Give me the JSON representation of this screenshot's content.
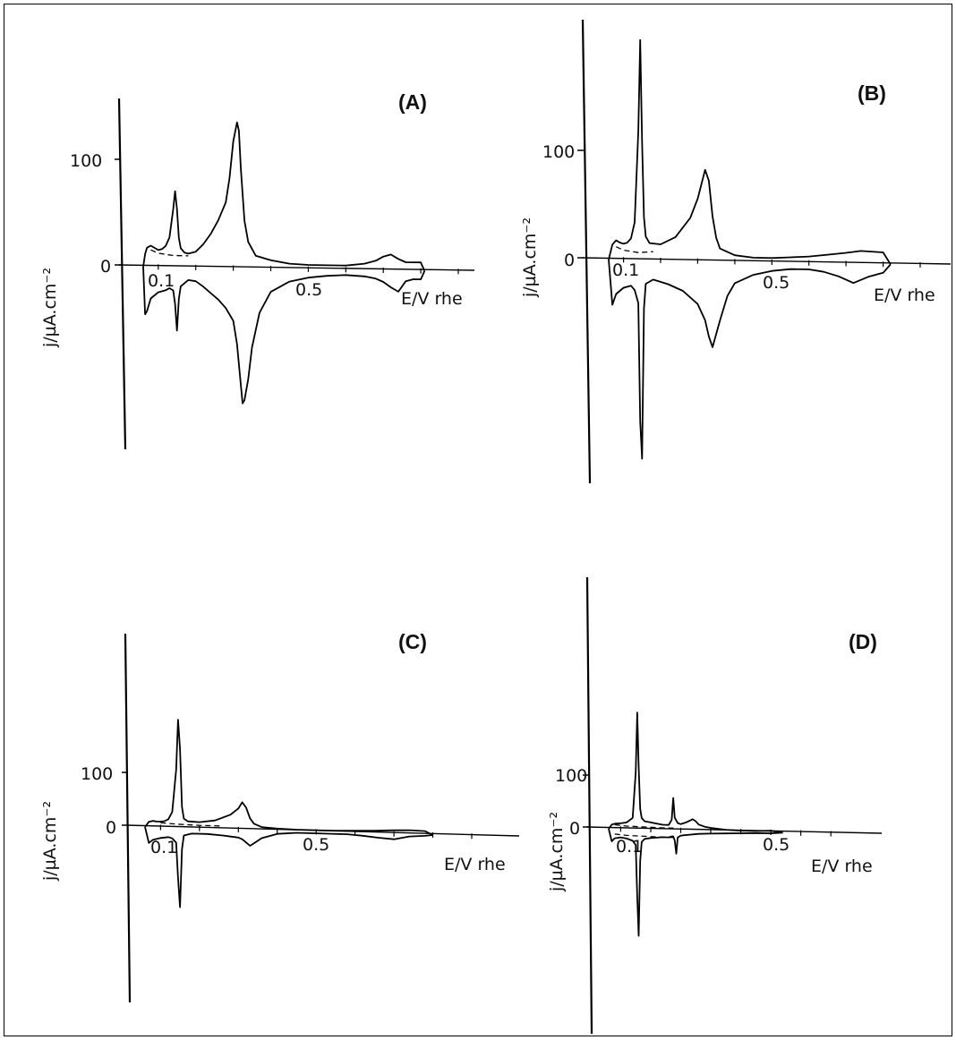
{
  "figure": {
    "panels": [
      {
        "id": "A",
        "label": "(A)",
        "ylabel": "j/µA.cm⁻²",
        "xlabel": "E/V rhe",
        "y_ticks": [
          "100",
          "0"
        ],
        "x_ticks": [
          "0.1",
          "0.5"
        ]
      },
      {
        "id": "B",
        "label": "(B)",
        "ylabel": "j/µA.cm⁻²",
        "xlabel": "E/V rhe",
        "y_ticks": [
          "100",
          "0"
        ],
        "x_ticks": [
          "0.1",
          "0.5"
        ]
      },
      {
        "id": "C",
        "label": "(C)",
        "ylabel": "j/µA.cm⁻²",
        "xlabel": "E/V rhe",
        "y_ticks": [
          "100",
          "0"
        ],
        "x_ticks": [
          "0.1",
          "0.5"
        ]
      },
      {
        "id": "D",
        "label": "(D)",
        "ylabel": "j/µA.cm⁻²",
        "xlabel": "E/V rhe",
        "y_ticks": [
          "100",
          "0"
        ],
        "x_ticks": [
          "0.1",
          "0.5"
        ]
      }
    ]
  },
  "chart_data": [
    {
      "type": "line",
      "panel": "A",
      "title": "(A)",
      "xlabel": "E/V rhe",
      "ylabel": "j/µA.cm⁻²",
      "xlim": [
        0.06,
        0.9
      ],
      "ylim": [
        -170,
        160
      ],
      "series": [
        {
          "role": "anodic",
          "x": [
            0.06,
            0.065,
            0.07,
            0.08,
            0.09,
            0.1,
            0.11,
            0.12,
            0.13,
            0.14,
            0.145,
            0.15,
            0.155,
            0.16,
            0.17,
            0.18,
            0.2,
            0.22,
            0.24,
            0.26,
            0.28,
            0.29,
            0.3,
            0.31,
            0.315,
            0.32,
            0.33,
            0.34,
            0.36,
            0.4,
            0.45,
            0.5,
            0.55,
            0.6,
            0.65,
            0.68,
            0.7,
            0.72,
            0.74,
            0.76,
            0.8,
            0.81
          ],
          "y": [
            0,
            12,
            18,
            20,
            18,
            16,
            17,
            20,
            28,
            55,
            72,
            55,
            28,
            18,
            14,
            13,
            15,
            22,
            32,
            45,
            62,
            85,
            120,
            138,
            130,
            95,
            45,
            25,
            12,
            8,
            5,
            4,
            4,
            4,
            6,
            9,
            13,
            15,
            11,
            8,
            8,
            0
          ]
        },
        {
          "role": "cathodic",
          "x": [
            0.81,
            0.8,
            0.78,
            0.76,
            0.74,
            0.72,
            0.7,
            0.68,
            0.65,
            0.6,
            0.55,
            0.5,
            0.45,
            0.4,
            0.37,
            0.35,
            0.34,
            0.33,
            0.325,
            0.32,
            0.31,
            0.3,
            0.28,
            0.26,
            0.24,
            0.22,
            0.2,
            0.18,
            0.16,
            0.155,
            0.15,
            0.145,
            0.14,
            0.13,
            0.12,
            0.1,
            0.08,
            0.07,
            0.065,
            0.06
          ],
          "y": [
            0,
            -8,
            -8,
            -10,
            -20,
            -16,
            -11,
            -8,
            -6,
            -5,
            -6,
            -8,
            -12,
            -22,
            -42,
            -75,
            -105,
            -125,
            -128,
            -110,
            -72,
            -50,
            -38,
            -30,
            -24,
            -18,
            -13,
            -12,
            -18,
            -30,
            -60,
            -35,
            -22,
            -20,
            -22,
            -24,
            -30,
            -42,
            -45,
            0
          ]
        },
        {
          "role": "dashed",
          "x": [
            0.08,
            0.1,
            0.14,
            0.18
          ],
          "y": [
            16,
            13,
            11,
            11
          ]
        }
      ]
    },
    {
      "type": "line",
      "panel": "B",
      "title": "(B)",
      "xlabel": "E/V rhe",
      "ylabel": "j/µA.cm⁻²",
      "xlim": [
        0.06,
        0.9
      ],
      "ylim": [
        -210,
        210
      ],
      "series": [
        {
          "role": "anodic",
          "x": [
            0.06,
            0.07,
            0.08,
            0.09,
            0.1,
            0.11,
            0.12,
            0.13,
            0.14,
            0.145,
            0.15,
            0.155,
            0.16,
            0.17,
            0.2,
            0.24,
            0.28,
            0.3,
            0.32,
            0.33,
            0.34,
            0.35,
            0.36,
            0.4,
            0.45,
            0.5,
            0.55,
            0.6,
            0.65,
            0.7,
            0.74,
            0.8,
            0.82
          ],
          "y": [
            0,
            14,
            18,
            16,
            15,
            16,
            20,
            35,
            120,
            205,
            110,
            40,
            22,
            16,
            15,
            22,
            40,
            58,
            85,
            75,
            42,
            22,
            12,
            6,
            4,
            4,
            5,
            6,
            8,
            10,
            12,
            11,
            0
          ]
        },
        {
          "role": "cathodic",
          "x": [
            0.82,
            0.8,
            0.76,
            0.72,
            0.68,
            0.64,
            0.6,
            0.55,
            0.5,
            0.45,
            0.4,
            0.38,
            0.36,
            0.34,
            0.33,
            0.32,
            0.3,
            0.26,
            0.22,
            0.18,
            0.16,
            0.155,
            0.15,
            0.145,
            0.14,
            0.13,
            0.12,
            0.1,
            0.08,
            0.07,
            0.06
          ],
          "y": [
            0,
            -8,
            -12,
            -18,
            -12,
            -8,
            -6,
            -6,
            -8,
            -12,
            -20,
            -32,
            -55,
            -80,
            -70,
            -55,
            -40,
            -28,
            -22,
            -18,
            -22,
            -45,
            -185,
            -150,
            -40,
            -28,
            -24,
            -26,
            -32,
            -42,
            0
          ]
        },
        {
          "role": "dashed",
          "x": [
            0.08,
            0.1,
            0.14,
            0.18
          ],
          "y": [
            12,
            9,
            7,
            8
          ]
        }
      ]
    },
    {
      "type": "line",
      "panel": "C",
      "title": "(C)",
      "xlabel": "E/V rhe",
      "ylabel": "j/µA.cm⁻²",
      "xlim": [
        0.06,
        0.93
      ],
      "ylim": [
        -170,
        210
      ],
      "series": [
        {
          "role": "anodic",
          "x": [
            0.06,
            0.07,
            0.08,
            0.09,
            0.1,
            0.11,
            0.12,
            0.13,
            0.14,
            0.145,
            0.15,
            0.155,
            0.16,
            0.17,
            0.2,
            0.24,
            0.28,
            0.3,
            0.31,
            0.32,
            0.33,
            0.34,
            0.36,
            0.4,
            0.45,
            0.5,
            0.55,
            0.6,
            0.65,
            0.7,
            0.74,
            0.78,
            0.8
          ],
          "y": [
            0,
            10,
            12,
            11,
            11,
            12,
            16,
            30,
            110,
            205,
            150,
            40,
            18,
            13,
            12,
            16,
            28,
            40,
            52,
            42,
            22,
            12,
            6,
            4,
            3,
            3,
            3,
            4,
            5,
            7,
            8,
            7,
            0
          ]
        },
        {
          "role": "cathodic",
          "x": [
            0.8,
            0.78,
            0.74,
            0.7,
            0.66,
            0.62,
            0.58,
            0.54,
            0.5,
            0.45,
            0.4,
            0.36,
            0.34,
            0.33,
            0.32,
            0.31,
            0.3,
            0.26,
            0.22,
            0.18,
            0.16,
            0.155,
            0.15,
            0.145,
            0.14,
            0.13,
            0.12,
            0.1,
            0.08,
            0.07,
            0.06
          ],
          "y": [
            0,
            -2,
            -4,
            -10,
            -8,
            -5,
            -3,
            -3,
            -3,
            -3,
            -6,
            -15,
            -25,
            -30,
            -24,
            -18,
            -15,
            -12,
            -10,
            -10,
            -14,
            -40,
            -150,
            -95,
            -28,
            -20,
            -18,
            -20,
            -24,
            -30,
            0
          ]
        },
        {
          "role": "dashed",
          "x": [
            0.1,
            0.14,
            0.2,
            0.26
          ],
          "y": [
            9,
            7,
            6,
            6
          ]
        }
      ]
    },
    {
      "type": "line",
      "panel": "D",
      "title": "(D)",
      "xlabel": "E/V rhe",
      "ylabel": "j/µA.cm⁻²",
      "xlim": [
        0.06,
        0.88
      ],
      "ylim": [
        -210,
        230
      ],
      "series": [
        {
          "role": "anodic",
          "x": [
            0.06,
            0.07,
            0.08,
            0.1,
            0.12,
            0.14,
            0.15,
            0.155,
            0.16,
            0.165,
            0.17,
            0.18,
            0.2,
            0.22,
            0.24,
            0.26,
            0.27,
            0.275,
            0.28,
            0.29,
            0.3,
            0.32,
            0.34,
            0.35,
            0.36,
            0.38,
            0.4,
            0.45,
            0.5,
            0.55,
            0.6,
            0.64
          ],
          "y": [
            0,
            8,
            10,
            11,
            13,
            22,
            110,
            225,
            120,
            40,
            22,
            16,
            14,
            12,
            10,
            10,
            20,
            62,
            24,
            14,
            12,
            16,
            22,
            18,
            12,
            8,
            6,
            3,
            2,
            2,
            3,
            0
          ]
        },
        {
          "role": "cathodic",
          "x": [
            0.64,
            0.6,
            0.55,
            0.5,
            0.45,
            0.4,
            0.36,
            0.33,
            0.3,
            0.29,
            0.285,
            0.28,
            0.275,
            0.27,
            0.26,
            0.24,
            0.22,
            0.2,
            0.18,
            0.17,
            0.165,
            0.16,
            0.155,
            0.15,
            0.14,
            0.12,
            0.1,
            0.08,
            0.07,
            0.06
          ],
          "y": [
            0,
            -2,
            -2,
            -3,
            -4,
            -5,
            -6,
            -8,
            -10,
            -14,
            -45,
            -20,
            -12,
            -12,
            -14,
            -14,
            -15,
            -16,
            -18,
            -24,
            -60,
            -205,
            -130,
            -30,
            -22,
            -18,
            -16,
            -18,
            -24,
            0
          ]
        },
        {
          "role": "dashed-upper",
          "x": [
            0.08,
            0.12,
            0.18,
            0.24,
            0.28
          ],
          "y": [
            8,
            6,
            5,
            4,
            4
          ]
        },
        {
          "role": "dashed-lower",
          "x": [
            0.08,
            0.12,
            0.18,
            0.24,
            0.28
          ],
          "y": [
            -10,
            -12,
            -13,
            -14,
            -14
          ]
        }
      ]
    }
  ]
}
